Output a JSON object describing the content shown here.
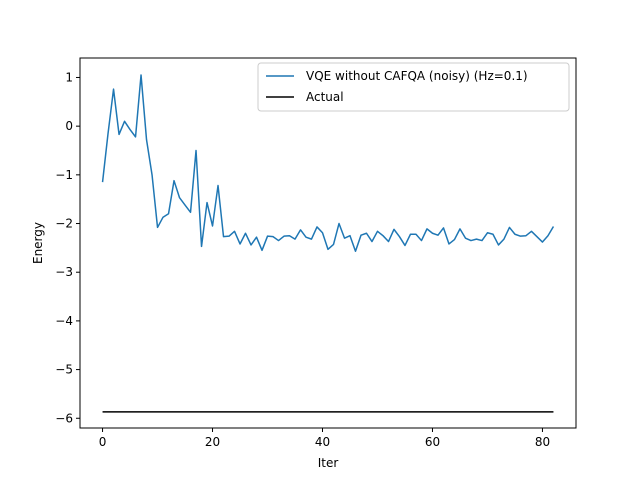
{
  "chart_data": {
    "type": "line",
    "title": "",
    "xlabel": "Iter",
    "ylabel": "Energy",
    "xlim": [
      -4.1,
      86.1
    ],
    "ylim": [
      -6.2,
      1.4
    ],
    "x_ticks": [
      0,
      20,
      40,
      60,
      80
    ],
    "x_tick_labels": [
      "0",
      "20",
      "40",
      "60",
      "80"
    ],
    "y_ticks": [
      1,
      0,
      -1,
      -2,
      -3,
      -4,
      -5,
      -6
    ],
    "y_tick_labels": [
      "1",
      "0",
      "−1",
      "−2",
      "−3",
      "−4",
      "−5",
      "−6"
    ],
    "grid": false,
    "legend_position": "upper right",
    "series": [
      {
        "name": "VQE without CAFQA (noisy) (Hz=0.1)",
        "color": "#1f77b4",
        "values": [
          -1.15,
          -0.15,
          0.76,
          -0.17,
          0.1,
          -0.07,
          -0.22,
          1.05,
          -0.28,
          -1.0,
          -2.08,
          -1.87,
          -1.8,
          -1.12,
          -1.47,
          -1.62,
          -1.77,
          -0.5,
          -2.47,
          -1.57,
          -2.05,
          -1.22,
          -2.27,
          -2.26,
          -2.16,
          -2.42,
          -2.2,
          -2.44,
          -2.28,
          -2.55,
          -2.26,
          -2.27,
          -2.35,
          -2.26,
          -2.25,
          -2.32,
          -2.13,
          -2.28,
          -2.32,
          -2.07,
          -2.19,
          -2.53,
          -2.43,
          -2.0,
          -2.3,
          -2.25,
          -2.57,
          -2.24,
          -2.2,
          -2.37,
          -2.16,
          -2.25,
          -2.37,
          -2.12,
          -2.27,
          -2.45,
          -2.22,
          -2.22,
          -2.35,
          -2.11,
          -2.2,
          -2.24,
          -2.09,
          -2.42,
          -2.33,
          -2.11,
          -2.3,
          -2.35,
          -2.32,
          -2.35,
          -2.19,
          -2.22,
          -2.44,
          -2.32,
          -2.08,
          -2.22,
          -2.26,
          -2.25,
          -2.16,
          -2.27,
          -2.38,
          -2.25,
          -2.06
        ]
      },
      {
        "name": "Actual",
        "color": "#000000",
        "x": [
          0,
          82
        ],
        "values": [
          -5.87,
          -5.87
        ]
      }
    ]
  }
}
